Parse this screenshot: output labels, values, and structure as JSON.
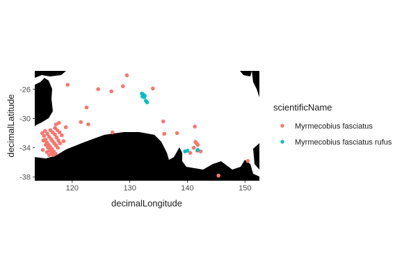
{
  "chart_data": {
    "type": "scatter",
    "xlabel": "decimalLongitude",
    "ylabel": "decimalLatitude",
    "xlim": [
      113.5,
      152.5
    ],
    "ylim": [
      -38.5,
      -23.5
    ],
    "x_ticks": [
      120,
      130,
      140,
      150
    ],
    "y_ticks": [
      -26,
      -30,
      -34,
      -38
    ],
    "grid": false,
    "legend": {
      "title": "scientificName",
      "position": "right"
    },
    "basemap": "black landmass with white background (south-western and south-eastern Australia)",
    "series": [
      {
        "name": "Myrmecobius fasciatus",
        "color": "#F8766D",
        "points": [
          [
            114.8,
            -32.0
          ],
          [
            115.1,
            -32.4
          ],
          [
            115.4,
            -32.9
          ],
          [
            115.6,
            -33.3
          ],
          [
            115.9,
            -33.6
          ],
          [
            116.2,
            -33.9
          ],
          [
            116.5,
            -34.2
          ],
          [
            116.8,
            -34.5
          ],
          [
            117.1,
            -34.8
          ],
          [
            115.3,
            -31.7
          ],
          [
            115.7,
            -32.1
          ],
          [
            116.0,
            -32.5
          ],
          [
            116.3,
            -32.8
          ],
          [
            116.6,
            -33.1
          ],
          [
            116.9,
            -33.4
          ],
          [
            117.2,
            -33.7
          ],
          [
            117.5,
            -34.0
          ],
          [
            115.0,
            -33.0
          ],
          [
            115.4,
            -33.6
          ],
          [
            115.8,
            -34.0
          ],
          [
            116.1,
            -34.4
          ],
          [
            116.4,
            -34.7
          ],
          [
            116.7,
            -35.0
          ],
          [
            117.0,
            -32.2
          ],
          [
            117.3,
            -32.6
          ],
          [
            117.6,
            -33.0
          ],
          [
            117.9,
            -33.4
          ],
          [
            116.2,
            -31.6
          ],
          [
            116.6,
            -31.9
          ],
          [
            117.0,
            -31.3
          ],
          [
            117.4,
            -31.6
          ],
          [
            117.8,
            -31.9
          ],
          [
            117.2,
            -30.8
          ],
          [
            117.7,
            -30.6
          ],
          [
            115.6,
            -34.6
          ],
          [
            114.9,
            -34.3
          ],
          [
            118.2,
            -32.3
          ],
          [
            118.5,
            -33.1
          ],
          [
            118.9,
            -31.2
          ],
          [
            116.0,
            -35.0
          ],
          [
            119.2,
            -25.4
          ],
          [
            122.5,
            -28.5
          ],
          [
            121.5,
            -30.5
          ],
          [
            122.8,
            -30.8
          ],
          [
            124.5,
            -26.0
          ],
          [
            126.8,
            -26.3
          ],
          [
            128.8,
            -25.6
          ],
          [
            129.5,
            -24.1
          ],
          [
            134.0,
            -25.9
          ],
          [
            127.0,
            -31.9
          ],
          [
            135.8,
            -30.4
          ],
          [
            136.0,
            -32.1
          ],
          [
            138.2,
            -32.0
          ],
          [
            140.5,
            -34.7
          ],
          [
            141.3,
            -31.1
          ],
          [
            141.4,
            -33.2
          ],
          [
            141.6,
            -33.4
          ],
          [
            141.8,
            -33.6
          ],
          [
            141.7,
            -34.4
          ],
          [
            142.3,
            -34.5
          ],
          [
            141.1,
            -34.0
          ],
          [
            145.4,
            -37.8
          ],
          [
            150.5,
            -35.8
          ]
        ]
      },
      {
        "name": "Myrmecobius fasciatus rufus",
        "color": "#00BFC4",
        "points": [
          [
            132.1,
            -26.6
          ],
          [
            132.4,
            -26.8
          ],
          [
            132.6,
            -26.9
          ],
          [
            132.2,
            -27.0
          ],
          [
            132.5,
            -27.1
          ],
          [
            132.3,
            -26.7
          ],
          [
            132.8,
            -27.6
          ],
          [
            133.0,
            -27.8
          ],
          [
            139.6,
            -34.5
          ],
          [
            140.0,
            -34.4
          ],
          [
            141.8,
            -34.3
          ]
        ]
      }
    ]
  }
}
